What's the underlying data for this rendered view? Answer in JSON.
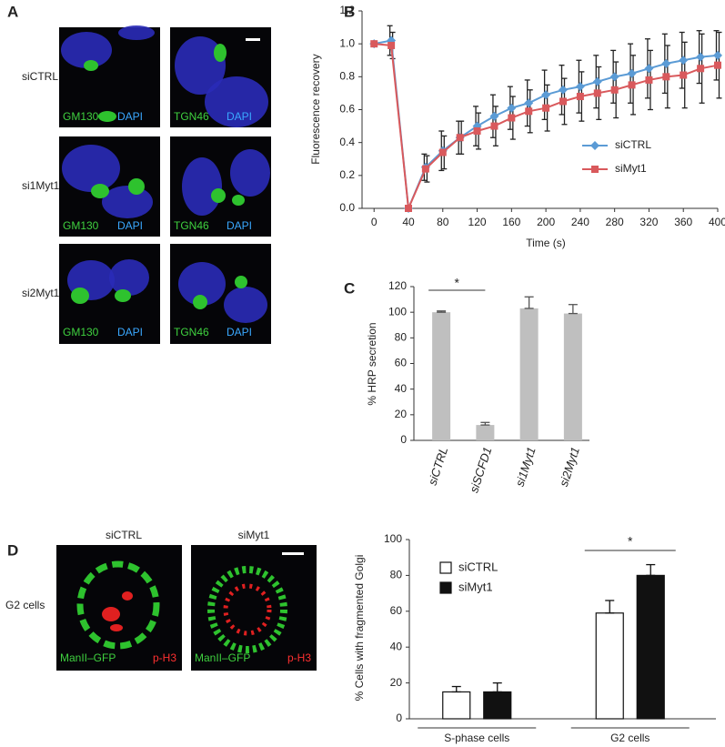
{
  "panels": [
    "A",
    "B",
    "C",
    "D"
  ],
  "panel_a": {
    "rows": [
      "siCTRL",
      "si1Myt1",
      "si2Myt1"
    ],
    "stains": [
      [
        "GM130",
        "DAPI"
      ],
      [
        "TGN46",
        "DAPI"
      ]
    ]
  },
  "panel_d_images": {
    "columns": [
      "siCTRL",
      "siMyt1"
    ],
    "row": "G2 cells",
    "stains": [
      "ManII–GFP",
      "p-H3"
    ]
  },
  "chart_data": [
    {
      "type": "line",
      "xlabel": "Time (s)",
      "ylabel": "Fluorescence recovery",
      "x": [
        0,
        20,
        40,
        60,
        80,
        100,
        120,
        140,
        160,
        180,
        200,
        220,
        240,
        260,
        280,
        300,
        320,
        340,
        360,
        380,
        400
      ],
      "series": [
        {
          "name": "siCTRL",
          "color": "#5b9bd5",
          "marker": "diamond",
          "values": [
            1.0,
            1.02,
            0,
            0.25,
            0.35,
            0.43,
            0.5,
            0.56,
            0.61,
            0.64,
            0.69,
            0.72,
            0.74,
            0.77,
            0.8,
            0.82,
            0.85,
            0.88,
            0.9,
            0.92,
            0.93
          ],
          "errors": [
            0,
            0.09,
            0,
            0.08,
            0.12,
            0.1,
            0.12,
            0.13,
            0.13,
            0.14,
            0.15,
            0.15,
            0.16,
            0.16,
            0.16,
            0.18,
            0.18,
            0.18,
            0.17,
            0.16,
            0.15
          ]
        },
        {
          "name": "siMyt1",
          "color": "#d9595c",
          "marker": "square",
          "values": [
            1.0,
            0.99,
            0,
            0.24,
            0.34,
            0.43,
            0.47,
            0.5,
            0.55,
            0.59,
            0.61,
            0.65,
            0.68,
            0.7,
            0.72,
            0.75,
            0.78,
            0.8,
            0.81,
            0.85,
            0.87
          ],
          "errors": [
            0,
            0.08,
            0,
            0.08,
            0.1,
            0.1,
            0.11,
            0.12,
            0.13,
            0.13,
            0.14,
            0.14,
            0.15,
            0.16,
            0.17,
            0.18,
            0.18,
            0.19,
            0.2,
            0.21,
            0.2
          ]
        }
      ],
      "xlim": [
        -14,
        400
      ],
      "xticks": [
        0,
        40,
        80,
        120,
        160,
        200,
        240,
        280,
        320,
        360,
        400
      ],
      "ylim": [
        0,
        1.2
      ],
      "yticks": [
        {
          "value": 0,
          "label": "0.0"
        },
        0.2,
        0.4,
        0.6,
        0.8,
        {
          "value": 1,
          "label": "1.0"
        },
        1.2
      ],
      "legend": "right"
    },
    {
      "type": "bar",
      "ylabel": "% HRP secretion",
      "categories": [
        "siCTRL",
        "siSCFD1",
        "si1Myt1",
        "si2Myt1"
      ],
      "values": [
        100,
        12,
        103,
        99
      ],
      "errors": [
        1,
        2,
        9,
        7
      ],
      "color": "#bfbfbf",
      "ylim": [
        0,
        120
      ],
      "yticks": [
        0,
        20,
        40,
        60,
        80,
        100,
        120
      ],
      "annotation": "*"
    },
    {
      "type": "bar",
      "ylabel": "% Cells with fragmented Golgi",
      "categories": [
        "S-phase cells",
        "G2 cells"
      ],
      "series": [
        {
          "name": "siCTRL",
          "color": "#ffffff",
          "values": [
            15,
            59
          ],
          "errors": [
            3,
            7
          ]
        },
        {
          "name": "siMyt1",
          "color": "#111111",
          "values": [
            15,
            80
          ],
          "errors": [
            5,
            6
          ]
        }
      ],
      "ylim": [
        0,
        100
      ],
      "yticks": [
        0,
        20,
        40,
        60,
        80,
        100
      ],
      "legend": "upper left",
      "annotation": "*"
    }
  ]
}
